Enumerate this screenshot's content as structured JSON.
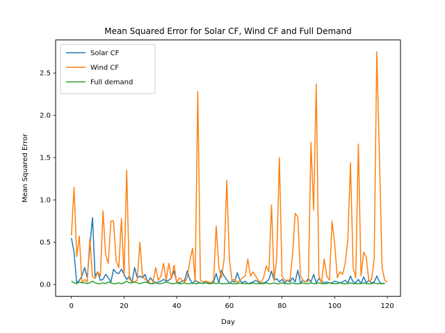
{
  "chart_data": {
    "type": "line",
    "title": "Mean Squared Error for Solar CF, Wind CF and Full Demand",
    "xlabel": "Day",
    "ylabel": "Mean Squared Error",
    "xlim": [
      -6,
      125
    ],
    "ylim": [
      -0.14,
      2.89
    ],
    "x_ticks": [
      0,
      20,
      40,
      60,
      80,
      100,
      120
    ],
    "y_ticks": [
      0.0,
      0.5,
      1.0,
      1.5,
      2.0,
      2.5
    ],
    "x_tick_labels": [
      "0",
      "20",
      "40",
      "60",
      "80",
      "100",
      "120"
    ],
    "y_tick_labels": [
      "0.0",
      "0.5",
      "1.0",
      "1.5",
      "2.0",
      "2.5"
    ],
    "grid": false,
    "legend_position": "upper-left",
    "series": [
      {
        "name": "Solar CF",
        "color": "#1f77b4",
        "values": [
          0.55,
          0.38,
          0.02,
          0.05,
          0.1,
          0.2,
          0.08,
          0.45,
          0.79,
          0.1,
          0.15,
          0.05,
          0.06,
          0.12,
          0.08,
          0.03,
          0.18,
          0.14,
          0.13,
          0.18,
          0.12,
          0.06,
          0.1,
          0.02,
          0.2,
          0.08,
          0.1,
          0.08,
          0.12,
          0.02,
          0.08,
          0.04,
          0.02,
          0.03,
          0.04,
          0.06,
          0.04,
          0.05,
          0.08,
          0.16,
          0.03,
          0.02,
          0.04,
          0.05,
          0.16,
          0.06,
          0.01,
          0.05,
          0.03,
          0.02,
          0.01,
          0.04,
          0.02,
          0.01,
          0.03,
          0.13,
          0.02,
          0.17,
          0.1,
          0.06,
          0.01,
          0.04,
          0.03,
          0.14,
          0.05,
          0.02,
          0.04,
          0.01,
          0.02,
          0.03,
          0.05,
          0.03,
          0.01,
          0.02,
          0.03,
          0.06,
          0.16,
          0.05,
          0.07,
          0.03,
          0.06,
          0.02,
          0.05,
          0.03,
          0.08,
          0.03,
          0.17,
          0.02,
          0.05,
          0.03,
          0.07,
          0.03,
          0.12,
          0.02,
          0.07,
          0.04,
          0.02,
          0.03,
          0.02,
          0.02,
          0.04,
          0.03,
          0.02,
          0.03,
          0.05,
          0.02,
          0.1,
          0.03,
          0.02,
          0.06,
          0.01,
          0.09,
          0.02,
          0.05,
          0.02,
          0.03,
          0.1,
          0.03,
          0.01,
          0.02
        ],
        "x_start": 0
      },
      {
        "name": "Wind CF",
        "color": "#ff7f0e",
        "values": [
          0.58,
          1.15,
          0.33,
          0.57,
          0.02,
          0.06,
          0.03,
          0.54,
          0.1,
          0.07,
          0.15,
          0.1,
          0.87,
          0.35,
          0.25,
          0.75,
          0.75,
          0.28,
          0.2,
          0.78,
          0.1,
          1.35,
          0.06,
          0.04,
          0.03,
          0.05,
          0.5,
          0.1,
          0.06,
          0.05,
          0.01,
          0.02,
          0.2,
          0.05,
          0.1,
          0.25,
          0.05,
          0.25,
          0.07,
          0.23,
          0.02,
          0.08,
          0.05,
          0.03,
          0.08,
          0.28,
          0.43,
          0.04,
          2.28,
          0.05,
          0.03,
          0.04,
          0.03,
          0.02,
          0.05,
          0.69,
          0.2,
          0.08,
          0.3,
          1.23,
          0.3,
          0.05,
          0.06,
          0.02,
          0.05,
          0.08,
          0.1,
          0.3,
          0.1,
          0.15,
          0.1,
          0.05,
          0.02,
          0.08,
          0.22,
          0.15,
          0.94,
          0.05,
          0.32,
          1.5,
          0.1,
          0.05,
          0.05,
          0.05,
          0.35,
          0.84,
          0.8,
          0.1,
          0.05,
          0.03,
          0.04,
          1.68,
          0.88,
          2.37,
          0.1,
          0.02,
          0.3,
          0.1,
          0.05,
          0.75,
          0.48,
          0.08,
          0.15,
          0.12,
          0.25,
          0.54,
          1.44,
          0.2,
          0.08,
          1.66,
          0.1,
          0.38,
          0.32,
          0.04,
          0.06,
          0.3,
          2.75,
          1.5,
          0.2,
          0.05,
          0.03
        ],
        "x_start": 0
      },
      {
        "name": "Full demand",
        "color": "#2ca02c",
        "values": [
          0.04,
          0.02,
          0.01,
          0.03,
          0.02,
          0.02,
          0.01,
          0.02,
          0.04,
          0.02,
          0.01,
          0.01,
          0.02,
          0.01,
          0.03,
          0.02,
          0.01,
          0.01,
          0.02,
          0.01,
          0.02,
          0.04,
          0.02,
          0.02,
          0.03,
          0.02,
          0.01,
          0.02,
          0.03,
          0.02,
          0.01,
          0.01,
          0.02,
          0.01,
          0.01,
          0.02,
          0.03,
          0.02,
          0.01,
          0.01,
          0.02,
          0.01,
          0.01,
          0.02,
          0.01,
          0.01,
          0.02,
          0.01,
          0.01,
          0.02,
          0.01,
          0.02,
          0.01,
          0.01,
          0.02,
          0.01,
          0.02,
          0.01,
          0.01,
          0.01,
          0.02,
          0.01,
          0.01,
          0.01,
          0.02,
          0.01,
          0.01,
          0.01,
          0.01,
          0.02,
          0.01,
          0.01,
          0.01,
          0.01,
          0.02,
          0.01,
          0.01,
          0.02,
          0.01,
          0.01,
          0.02,
          0.01,
          0.01,
          0.01,
          0.02,
          0.01,
          0.01,
          0.01,
          0.02,
          0.01,
          0.01,
          0.02,
          0.01,
          0.01,
          0.02,
          0.01,
          0.01,
          0.01,
          0.02,
          0.01,
          0.01,
          0.01,
          0.02,
          0.01,
          0.01,
          0.01,
          0.02,
          0.01,
          0.01,
          0.01,
          0.01,
          0.02,
          0.01,
          0.01,
          0.01,
          0.02,
          0.01,
          0.01,
          0.01,
          0.01
        ],
        "x_start": 0
      }
    ]
  }
}
